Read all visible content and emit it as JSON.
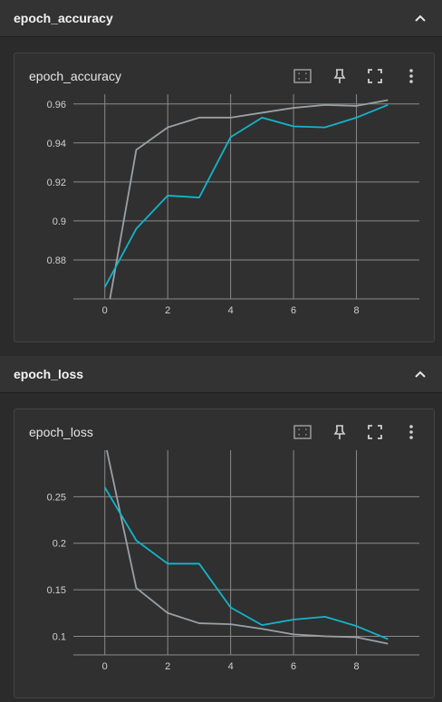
{
  "sections": [
    {
      "title": "epoch_accuracy",
      "card_title": "epoch_accuracy",
      "icons": {
        "fit": "fit-domain-icon",
        "pin": "pin-icon",
        "fullscreen": "fullscreen-icon",
        "menu": "more-vert-icon",
        "collapse": "chevron-up-icon"
      }
    },
    {
      "title": "epoch_loss",
      "card_title": "epoch_loss",
      "icons": {
        "fit": "fit-domain-icon",
        "pin": "pin-icon",
        "fullscreen": "fullscreen-icon",
        "menu": "more-vert-icon",
        "collapse": "chevron-up-icon"
      }
    }
  ],
  "colors": {
    "series_train": "#9aa0a6",
    "series_validation": "#12b5cb",
    "grid": "#8a8a8a"
  },
  "chart_data": [
    {
      "type": "line",
      "title": "epoch_accuracy",
      "xlim": [
        -1,
        10
      ],
      "ylim": [
        0.86,
        0.965
      ],
      "xticks": [
        0,
        2,
        4,
        6,
        8
      ],
      "xtick_labels": [
        "0",
        "2",
        "4",
        "6",
        "8"
      ],
      "yticks": [
        0.88,
        0.9,
        0.92,
        0.94,
        0.96
      ],
      "ytick_labels": [
        "0.88",
        "0.9",
        "0.92",
        "0.94",
        "0.96"
      ],
      "grid": true,
      "series": [
        {
          "x": [
            0,
            1,
            2,
            3,
            4,
            5,
            6,
            7,
            8,
            9
          ],
          "y": [
            0.845,
            0.9365,
            0.948,
            0.953,
            0.953,
            0.9555,
            0.958,
            0.9595,
            0.959,
            0.962
          ]
        },
        {
          "x": [
            0,
            1,
            2,
            3,
            4,
            5,
            6,
            7,
            8,
            9
          ],
          "y": [
            0.866,
            0.896,
            0.913,
            0.912,
            0.943,
            0.953,
            0.9485,
            0.948,
            0.953,
            0.9595
          ]
        }
      ]
    },
    {
      "type": "line",
      "title": "epoch_loss",
      "xlim": [
        -1,
        10
      ],
      "ylim": [
        0.08,
        0.3
      ],
      "xticks": [
        0,
        2,
        4,
        6,
        8
      ],
      "xtick_labels": [
        "0",
        "2",
        "4",
        "6",
        "8"
      ],
      "yticks": [
        0.1,
        0.15,
        0.2,
        0.25
      ],
      "ytick_labels": [
        "0.1",
        "0.15",
        "0.2",
        "0.25"
      ],
      "grid": true,
      "series": [
        {
          "x": [
            0,
            1,
            2,
            3,
            4,
            5,
            6,
            7,
            8,
            9
          ],
          "y": [
            0.31,
            0.152,
            0.125,
            0.114,
            0.113,
            0.108,
            0.102,
            0.1,
            0.099,
            0.092
          ]
        },
        {
          "x": [
            0,
            1,
            2,
            3,
            4,
            5,
            6,
            7,
            8,
            9
          ],
          "y": [
            0.26,
            0.203,
            0.178,
            0.178,
            0.131,
            0.112,
            0.118,
            0.121,
            0.111,
            0.097
          ]
        }
      ]
    }
  ]
}
